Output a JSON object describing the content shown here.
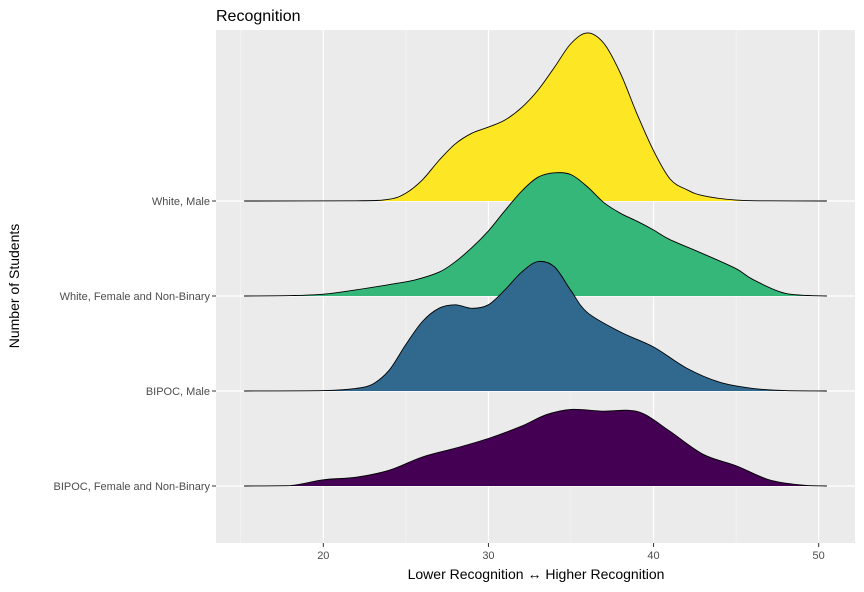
{
  "chart_data": {
    "type": "area",
    "subtype": "ridgeline-density",
    "title": "Recognition",
    "xlabel": "Lower Recognition ↔ Higher Recognition",
    "ylabel": "Number of Students",
    "xlim": [
      13.5,
      52.2
    ],
    "x_ticks": [
      20,
      30,
      40,
      50
    ],
    "grid": true,
    "legend": "none",
    "series": [
      {
        "name": "BIPOC, Female and Non-Binary",
        "color": "#440154",
        "x": [
          15.2,
          18,
          20,
          22,
          24,
          26,
          28,
          30,
          32,
          33.5,
          35,
          37,
          38.5,
          39.5,
          41,
          43,
          45,
          47,
          49,
          50.5
        ],
        "y": [
          0,
          0.05,
          0.7,
          1.0,
          1.8,
          3.3,
          4.3,
          5.4,
          6.8,
          8.1,
          8.7,
          8.5,
          8.6,
          8.1,
          6.2,
          3.6,
          2.3,
          0.7,
          0.1,
          0
        ]
      },
      {
        "name": "BIPOC, Male",
        "color": "#31688E",
        "x": [
          15.2,
          20,
          22,
          23,
          24,
          25,
          26,
          27,
          28,
          29,
          30,
          31,
          32,
          33,
          34,
          35,
          36,
          38,
          40,
          42,
          44,
          46,
          48,
          50.5
        ],
        "y": [
          0,
          0.04,
          0.3,
          0.8,
          2.4,
          5.3,
          7.9,
          9.4,
          9.8,
          9.4,
          9.8,
          11.5,
          13.5,
          14.7,
          14.1,
          11.4,
          8.9,
          6.7,
          5.0,
          2.6,
          1.0,
          0.3,
          0.04,
          0
        ]
      },
      {
        "name": "White, Female and Non-Binary",
        "color": "#35B779",
        "x": [
          15.2,
          18,
          20,
          22,
          24,
          25.5,
          27,
          28,
          29,
          30,
          31,
          32,
          33,
          34,
          35,
          36,
          37,
          38,
          39,
          40,
          41,
          43,
          45,
          46,
          48,
          50.5
        ],
        "y": [
          0,
          0.05,
          0.2,
          0.7,
          1.3,
          1.8,
          2.7,
          3.9,
          5.5,
          7.4,
          9.7,
          11.9,
          13.5,
          14.0,
          13.8,
          12.4,
          10.6,
          9.4,
          8.5,
          7.5,
          6.4,
          4.8,
          3.1,
          1.9,
          0.3,
          0
        ]
      },
      {
        "name": "White, Male",
        "color": "#FDE725",
        "x": [
          15.2,
          22,
          24,
          25,
          26,
          27,
          28,
          29,
          30,
          31,
          32,
          33,
          34,
          35,
          36,
          37,
          38,
          39,
          40,
          41,
          42,
          43,
          45,
          47,
          50.5
        ],
        "y": [
          0,
          0.02,
          0.2,
          0.9,
          2.4,
          4.6,
          6.5,
          7.7,
          8.4,
          9.2,
          10.6,
          12.6,
          15.2,
          17.9,
          19.1,
          17.9,
          14.5,
          9.9,
          5.7,
          2.5,
          1.3,
          0.6,
          0.1,
          0.02,
          0
        ]
      }
    ]
  }
}
